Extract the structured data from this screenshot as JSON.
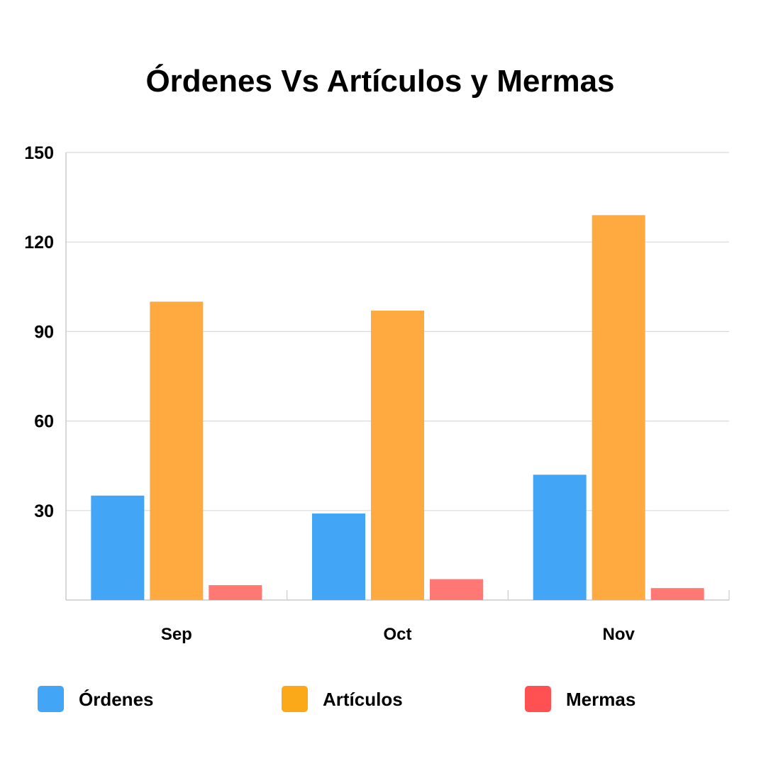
{
  "chart_data": {
    "type": "bar",
    "title": "Órdenes Vs Artículos y Mermas",
    "xlabel": "",
    "ylabel": "",
    "categories": [
      "Sep",
      "Oct",
      "Nov"
    ],
    "series": [
      {
        "name": "Órdenes",
        "values": [
          35,
          29,
          42
        ],
        "color": "#42A5F5",
        "legend_color": "#42A5F5"
      },
      {
        "name": "Artículos",
        "values": [
          100,
          97,
          129
        ],
        "color": "#FFA941",
        "legend_color": "#FBA919"
      },
      {
        "name": "Mermas",
        "values": [
          5,
          7,
          4
        ],
        "color": "#FF7873",
        "legend_color": "#FF5151"
      }
    ],
    "ylim": [
      0,
      150
    ],
    "yticks": [
      30,
      60,
      90,
      120,
      150
    ],
    "yticklabels": [
      "30",
      "60",
      "90",
      "120",
      "150"
    ],
    "grid": true,
    "legend_position": "bottom"
  }
}
